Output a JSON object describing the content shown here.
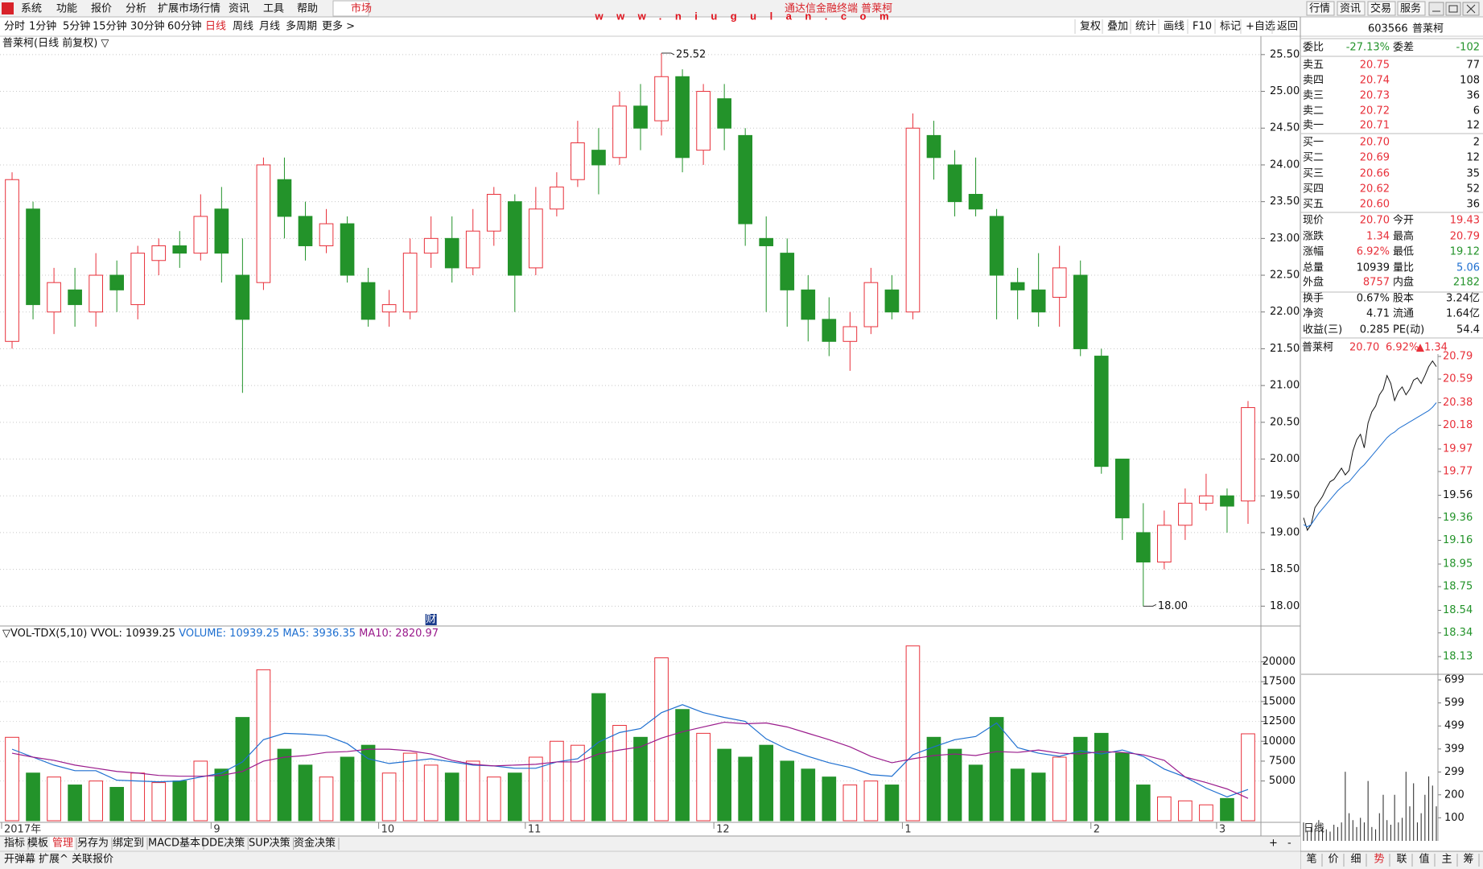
{
  "menu": {
    "items": [
      "系统",
      "功能",
      "报价",
      "分析",
      "扩展市场行情",
      "资讯",
      "工具",
      "帮助"
    ],
    "market": "市场",
    "window_title": "通达信金融终端 普莱柯",
    "watermark": "www.niugulan.com",
    "buttons": [
      "行情",
      "资讯",
      "交易",
      "服务"
    ]
  },
  "toolbar": {
    "periods": [
      "分时",
      "1分钟",
      "5分钟",
      "15分钟",
      "30分钟",
      "60分钟",
      "日线",
      "周线",
      "月线",
      "多周期",
      "更多 >"
    ],
    "active": 6,
    "tools": [
      "复权",
      "叠加",
      "统计",
      "画线",
      "F10",
      "标记",
      "+自选",
      "返回"
    ]
  },
  "chart_title": "普莱柯(日线 前复权) ▽",
  "chart_data": [
    {
      "type": "candlestick",
      "categories": [
        "2017年",
        null,
        null,
        null,
        null,
        null,
        null,
        null,
        null,
        null,
        "9",
        null,
        null,
        null,
        null,
        null,
        null,
        null,
        "10",
        null,
        null,
        null,
        null,
        null,
        null,
        "11",
        null,
        null,
        null,
        null,
        null,
        null,
        null,
        null,
        "12",
        null,
        null,
        null,
        null,
        null,
        null,
        null,
        null,
        "1",
        null,
        null,
        null,
        null,
        null,
        null,
        null,
        null,
        "2",
        null,
        null,
        null,
        null,
        null,
        "3",
        null
      ],
      "open": [
        21.6,
        23.4,
        22.0,
        22.3,
        22.0,
        22.5,
        22.1,
        22.7,
        22.9,
        22.8,
        23.4,
        22.5,
        22.4,
        23.8,
        23.3,
        22.9,
        23.2,
        22.4,
        22.0,
        22.0,
        22.8,
        23.0,
        22.6,
        23.1,
        23.5,
        22.6,
        23.4,
        23.8,
        24.2,
        24.1,
        24.8,
        24.6,
        25.2,
        24.2,
        24.9,
        24.4,
        23.0,
        22.8,
        22.3,
        21.9,
        21.6,
        21.8,
        22.3,
        22.0,
        24.4,
        24.0,
        23.6,
        23.3,
        22.4,
        22.3,
        22.2,
        22.5,
        21.4,
        20.0,
        19.0,
        18.6,
        19.1,
        19.4,
        19.5,
        19.43
      ],
      "close": [
        23.8,
        22.1,
        22.4,
        22.1,
        22.5,
        22.3,
        22.8,
        22.9,
        22.8,
        23.3,
        22.8,
        21.9,
        24.0,
        23.3,
        22.9,
        23.2,
        22.5,
        21.9,
        22.1,
        22.8,
        23.0,
        22.6,
        23.1,
        23.6,
        22.5,
        23.4,
        23.7,
        24.3,
        24.0,
        24.8,
        24.5,
        25.2,
        24.1,
        25.0,
        24.5,
        23.2,
        22.9,
        22.3,
        21.9,
        21.6,
        21.8,
        22.4,
        22.0,
        24.5,
        24.1,
        23.5,
        23.4,
        22.5,
        22.3,
        22.0,
        22.6,
        21.5,
        19.9,
        19.2,
        18.6,
        19.1,
        19.4,
        19.5,
        19.36,
        20.7
      ],
      "high": [
        23.9,
        23.5,
        22.6,
        22.6,
        22.8,
        22.7,
        22.9,
        23.0,
        23.1,
        23.6,
        23.7,
        23.0,
        24.1,
        24.1,
        23.5,
        23.4,
        23.3,
        22.6,
        22.3,
        23.0,
        23.3,
        23.3,
        23.4,
        23.7,
        23.6,
        23.7,
        23.9,
        24.6,
        24.5,
        25.0,
        25.1,
        25.52,
        25.3,
        25.1,
        25.1,
        24.5,
        23.3,
        23.0,
        22.5,
        22.2,
        22.0,
        22.6,
        22.5,
        24.7,
        24.6,
        24.2,
        24.1,
        23.4,
        22.6,
        22.8,
        22.9,
        22.7,
        21.5,
        20.0,
        19.4,
        19.3,
        19.6,
        19.8,
        19.6,
        20.79
      ],
      "low": [
        21.5,
        21.9,
        21.7,
        21.8,
        21.8,
        22.0,
        21.9,
        22.5,
        22.6,
        22.7,
        22.4,
        20.9,
        22.3,
        23.0,
        22.7,
        22.8,
        22.4,
        21.8,
        21.8,
        21.9,
        22.6,
        22.4,
        22.5,
        22.9,
        22.0,
        22.5,
        23.3,
        23.7,
        23.6,
        24.0,
        24.2,
        24.4,
        23.9,
        24.0,
        24.2,
        22.9,
        22.0,
        21.8,
        21.6,
        21.4,
        21.2,
        21.7,
        21.9,
        21.9,
        23.8,
        23.3,
        23.3,
        21.9,
        21.9,
        21.8,
        21.8,
        21.4,
        19.8,
        18.9,
        18.0,
        18.5,
        18.9,
        19.3,
        19.0,
        19.12
      ],
      "ylim": [
        17.73,
        25.75
      ],
      "yticks": [
        {
          "value": 18,
          "label": "18.00"
        },
        {
          "value": 18.5,
          "label": "18.50"
        },
        {
          "value": 19,
          "label": "19.00"
        },
        {
          "value": 19.5,
          "label": "19.50"
        },
        {
          "value": 20,
          "label": "20.00"
        },
        {
          "value": 20.5,
          "label": "20.50"
        },
        {
          "value": 21,
          "label": "21.00"
        },
        {
          "value": 21.5,
          "label": "21.50"
        },
        {
          "value": 22,
          "label": "22.00"
        },
        {
          "value": 22.5,
          "label": "22.50"
        },
        {
          "value": 23,
          "label": "23.00"
        },
        {
          "value": 23.5,
          "label": "23.50"
        },
        {
          "value": 24,
          "label": "24.00"
        },
        {
          "value": 24.5,
          "label": "24.50"
        },
        {
          "value": 25,
          "label": "25.00"
        },
        {
          "value": 25.5,
          "label": "25.50"
        }
      ],
      "grid": true,
      "up_color": "#e8303a",
      "down_color": "#23932a",
      "max_label": "25.52",
      "min_label": "18.00",
      "marker": "财"
    },
    {
      "type": "bar",
      "title": "▽VOL-TDX(5,10)",
      "label": "VVOL: 10939.25",
      "name": "VOLUME: 10939.25",
      "color": "#1e6fd0",
      "values": [
        10500,
        6000,
        5500,
        4500,
        5000,
        4200,
        6000,
        4800,
        5000,
        7500,
        6500,
        13000,
        19000,
        9000,
        7000,
        5500,
        8000,
        9500,
        6000,
        8500,
        7000,
        6000,
        7500,
        5500,
        6000,
        8000,
        10000,
        9500,
        16000,
        12000,
        10500,
        20500,
        14000,
        11000,
        9000,
        8000,
        9500,
        7500,
        6500,
        5500,
        4500,
        5000,
        4500,
        22000,
        10500,
        9000,
        7000,
        13000,
        6500,
        6000,
        8000,
        10500,
        11000,
        8500,
        4500,
        3000,
        2500,
        2000,
        2800,
        10939.25
      ],
      "series": [
        {
          "name": "MA5: 3936.35",
          "color": "#1e6fd0",
          "values": [
            9000,
            8000,
            7000,
            6300,
            6300,
            5100,
            5000,
            4900,
            5000,
            5500,
            6000,
            7400,
            10200,
            11000,
            10900,
            10700,
            9700,
            7800,
            7200,
            7500,
            7800,
            7400,
            7000,
            6900,
            6600,
            6600,
            7400,
            7800,
            9900,
            11100,
            11600,
            13600,
            14600,
            13600,
            13000,
            12500,
            10300,
            9000,
            8100,
            7300,
            6700,
            5800,
            5600,
            8300,
            9300,
            10200,
            10600,
            12300,
            9200,
            8500,
            8100,
            8800,
            8400,
            8900,
            8100,
            6500,
            5500,
            4100,
            3000,
            3936.35
          ]
        },
        {
          "name": "MA10: 2820.97",
          "color": "#9a1b8c",
          "values": [
            8500,
            8000,
            7600,
            7000,
            6600,
            6200,
            6000,
            5700,
            5600,
            5600,
            5700,
            6200,
            7500,
            8000,
            8200,
            8600,
            8700,
            9000,
            9000,
            8800,
            8400,
            7600,
            7100,
            6900,
            7000,
            7100,
            7400,
            7400,
            8400,
            8900,
            9300,
            10400,
            11200,
            11800,
            12400,
            12200,
            12300,
            11800,
            11000,
            10200,
            9300,
            8100,
            7300,
            7800,
            8200,
            8400,
            8200,
            8700,
            8600,
            8900,
            8500,
            8400,
            8700,
            8600,
            8300,
            7600,
            5500,
            4800,
            4000,
            2820.97
          ]
        }
      ],
      "ylim": [
        0,
        24000
      ],
      "yticks": [
        5000,
        7500,
        10000,
        12500,
        15000,
        17500,
        20000
      ],
      "grid": true
    },
    {
      "type": "line",
      "title": "普莱柯",
      "header": [
        "20.70",
        "6.92%",
        "▲1.34"
      ],
      "series": [
        {
          "color": "#111111",
          "values": [
            19.36,
            19.25,
            19.3,
            19.45,
            19.5,
            19.55,
            19.62,
            19.68,
            19.7,
            19.75,
            19.8,
            19.74,
            19.78,
            19.95,
            20.05,
            20.1,
            19.98,
            20.2,
            20.3,
            20.35,
            20.45,
            20.5,
            20.62,
            20.55,
            20.4,
            20.48,
            20.52,
            20.45,
            20.5,
            20.58,
            20.6,
            20.55,
            20.62,
            20.7,
            20.75,
            20.7
          ]
        },
        {
          "color": "#1e6fd0",
          "values": [
            19.3,
            19.28,
            19.3,
            19.35,
            19.4,
            19.44,
            19.48,
            19.52,
            19.56,
            19.6,
            19.63,
            19.66,
            19.68,
            19.72,
            19.76,
            19.8,
            19.83,
            19.87,
            19.91,
            19.95,
            19.99,
            20.03,
            20.07,
            20.1,
            20.12,
            20.15,
            20.17,
            20.19,
            20.21,
            20.23,
            20.25,
            20.27,
            20.29,
            20.31,
            20.34,
            20.38
          ]
        }
      ],
      "ylim": [
        18.13,
        20.79
      ],
      "yticks": [
        20.79,
        20.59,
        20.38,
        20.18,
        19.97,
        19.77,
        19.56,
        19.36,
        19.16,
        18.95,
        18.75,
        18.54,
        18.34,
        18.13
      ],
      "volume": {
        "color": "#222222",
        "values": [
          80,
          40,
          60,
          50,
          90,
          60,
          50,
          40,
          70,
          60,
          80,
          300,
          120,
          90,
          60,
          100,
          80,
          260,
          60,
          50,
          120,
          200,
          90,
          70,
          200,
          80,
          100,
          300,
          150,
          250,
          80,
          120,
          200,
          280,
          240,
          150
        ],
        "ylim": [
          0,
          699
        ],
        "yticks": [
          699,
          599,
          499,
          399,
          299,
          200,
          100
        ]
      }
    }
  ],
  "quote": {
    "code": "603566",
    "name": "普莱柯",
    "ratio": [
      "委比",
      "-27.13%",
      "委差",
      "-102"
    ],
    "asks": [
      [
        "卖五",
        "20.75",
        "77"
      ],
      [
        "卖四",
        "20.74",
        "108"
      ],
      [
        "卖三",
        "20.73",
        "36"
      ],
      [
        "卖二",
        "20.72",
        "6"
      ],
      [
        "卖一",
        "20.71",
        "12"
      ]
    ],
    "bids": [
      [
        "买一",
        "20.70",
        "2"
      ],
      [
        "买二",
        "20.69",
        "12"
      ],
      [
        "买三",
        "20.66",
        "35"
      ],
      [
        "买四",
        "20.62",
        "52"
      ],
      [
        "买五",
        "20.60",
        "36"
      ]
    ],
    "stats": [
      [
        "现价",
        "20.70",
        "今开",
        "19.43"
      ],
      [
        "涨跌",
        "1.34",
        "最高",
        "20.79"
      ],
      [
        "涨幅",
        "6.92%",
        "最低",
        "19.12"
      ],
      [
        "总量",
        "10939",
        "量比",
        "5.06"
      ],
      [
        "外盘",
        "8757",
        "内盘",
        "2182"
      ],
      [
        "换手",
        "0.67%",
        "股本",
        "3.24亿"
      ],
      [
        "净资",
        "4.71",
        "流通",
        "1.64亿"
      ],
      [
        "收益(三)",
        "0.285",
        "PE(动)",
        "54.4"
      ]
    ],
    "stat_colors": [
      [
        "#e8303a",
        "#e8303a"
      ],
      [
        "#e8303a",
        "#e8303a"
      ],
      [
        "#e8303a",
        "#23932a"
      ],
      [
        "#111111",
        "#1e6fd0"
      ],
      [
        "#e8303a",
        "#23932a"
      ],
      [
        "#111111",
        "#111111"
      ],
      [
        "#111111",
        "#111111"
      ],
      [
        "#111111",
        "#111111"
      ]
    ]
  },
  "bottom": {
    "tabs": [
      "指标",
      "模板",
      "管理",
      "另存为",
      "绑定到",
      "MACD基本",
      "DDE决策",
      "SUP决策",
      "资金决策"
    ],
    "active": 2,
    "zoom": [
      "+",
      "-"
    ],
    "period": "日线",
    "row2": [
      "开弹幕",
      "扩展^",
      "关联报价"
    ],
    "side_tabs": [
      "笔",
      "价",
      "细",
      "势",
      "联",
      "值",
      "主",
      "筹"
    ],
    "side_active": 3
  }
}
